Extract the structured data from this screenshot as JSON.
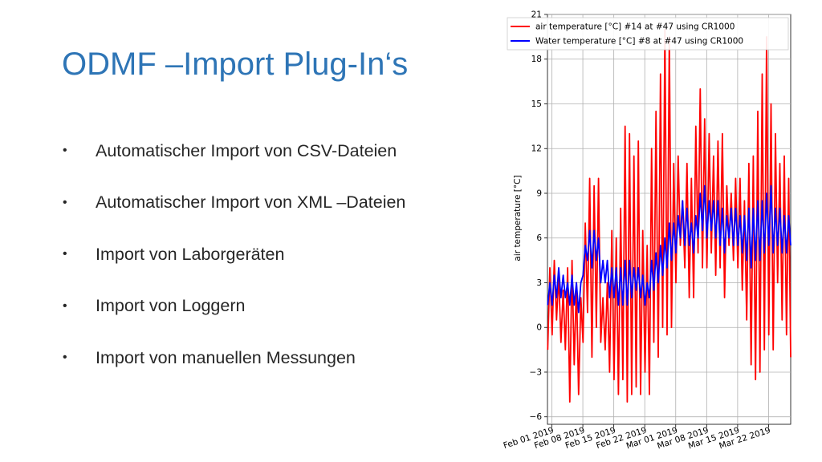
{
  "slide": {
    "title": "ODMF –Import Plug-In‘s",
    "bullet_symbol": "•",
    "bullets": [
      "Automatischer Import von CSV-Dateien",
      "Automatischer Import von XML –Dateien",
      "Import von Laborgeräten",
      "Import von Loggern",
      "Import von manuellen Messungen"
    ]
  },
  "chart_data": {
    "type": "line",
    "ylabel": "air temperature [°C]",
    "xlabel": "",
    "x_range": [
      "2019-01-31",
      "2019-03-27"
    ],
    "ylim": [
      -6.5,
      21
    ],
    "yticks": [
      -6,
      -3,
      0,
      3,
      6,
      9,
      12,
      15,
      18,
      21
    ],
    "ytick_labels": [
      "−6",
      "−3",
      "0",
      "3",
      "6",
      "9",
      "12",
      "15",
      "18",
      "21"
    ],
    "xticks": [
      "2019-02-01",
      "2019-02-08",
      "2019-02-15",
      "2019-02-22",
      "2019-03-01",
      "2019-03-08",
      "2019-03-15",
      "2019-03-22"
    ],
    "xtick_labels": [
      "Feb 01 2019",
      "Feb 08 2019",
      "Feb 15 2019",
      "Feb 22 2019",
      "Mar 01 2019",
      "Mar 08 2019",
      "Mar 15 2019",
      "Mar 22 2019"
    ],
    "grid": true,
    "legend_position": "top-left",
    "series": [
      {
        "name": "air temperature [°C] #14 at #47 using CR1000",
        "color": "#ff0000",
        "x": [
          "2019-01-31",
          "2019-02-01",
          "2019-02-02",
          "2019-02-03",
          "2019-02-04",
          "2019-02-05",
          "2019-02-06",
          "2019-02-07",
          "2019-02-08",
          "2019-02-09",
          "2019-02-10",
          "2019-02-11",
          "2019-02-12",
          "2019-02-13",
          "2019-02-14",
          "2019-02-15",
          "2019-02-16",
          "2019-02-17",
          "2019-02-18",
          "2019-02-19",
          "2019-02-20",
          "2019-02-21",
          "2019-02-22",
          "2019-02-23",
          "2019-02-24",
          "2019-02-25",
          "2019-02-26",
          "2019-02-27",
          "2019-02-28",
          "2019-03-01",
          "2019-03-02",
          "2019-03-03",
          "2019-03-04",
          "2019-03-05",
          "2019-03-06",
          "2019-03-07",
          "2019-03-08",
          "2019-03-09",
          "2019-03-10",
          "2019-03-11",
          "2019-03-12",
          "2019-03-13",
          "2019-03-14",
          "2019-03-15",
          "2019-03-16",
          "2019-03-17",
          "2019-03-18",
          "2019-03-19",
          "2019-03-20",
          "2019-03-21",
          "2019-03-22",
          "2019-03-23",
          "2019-03-24",
          "2019-03-25",
          "2019-03-26",
          "2019-03-27"
        ],
        "min": [
          -1.5,
          -0.5,
          0.5,
          -1.0,
          -1.5,
          -5.0,
          -2.5,
          -4.5,
          -1.0,
          1.0,
          -2.0,
          0.0,
          -1.0,
          -1.5,
          -3.0,
          -3.5,
          -4.5,
          -3.5,
          -5.0,
          -4.5,
          -4.0,
          -4.5,
          -3.0,
          -4.5,
          -1.0,
          -2.0,
          0.0,
          -0.5,
          0.0,
          3.0,
          5.5,
          4.0,
          2.0,
          2.0,
          5.0,
          4.0,
          4.0,
          5.0,
          3.5,
          4.0,
          2.0,
          5.5,
          4.5,
          4.0,
          2.5,
          0.5,
          -2.5,
          -3.5,
          -3.0,
          -1.5,
          -0.5,
          -1.5,
          3.0,
          0.5,
          -0.5,
          -2.0
        ],
        "max": [
          4.0,
          4.5,
          3.5,
          2.5,
          4.0,
          4.5,
          3.0,
          2.0,
          7.0,
          10.0,
          9.5,
          10.0,
          2.0,
          3.0,
          6.5,
          6.0,
          8.0,
          13.5,
          13.0,
          11.5,
          12.5,
          6.5,
          5.5,
          12.0,
          14.5,
          17.0,
          20.0,
          19.5,
          11.0,
          11.5,
          8.5,
          11.0,
          10.0,
          13.5,
          16.0,
          14.0,
          13.0,
          11.5,
          12.5,
          13.0,
          9.5,
          9.0,
          10.0,
          10.0,
          8.5,
          11.0,
          11.5,
          14.5,
          17.0,
          19.5,
          15.0,
          13.0,
          11.0,
          11.5,
          10.0,
          8.0
        ]
      },
      {
        "name": "Water temperature [°C] #8 at #47 using CR1000",
        "color": "#0000ff",
        "x": [
          "2019-01-31",
          "2019-02-01",
          "2019-02-02",
          "2019-02-03",
          "2019-02-04",
          "2019-02-05",
          "2019-02-06",
          "2019-02-07",
          "2019-02-08",
          "2019-02-09",
          "2019-02-10",
          "2019-02-11",
          "2019-02-12",
          "2019-02-13",
          "2019-02-14",
          "2019-02-15",
          "2019-02-16",
          "2019-02-17",
          "2019-02-18",
          "2019-02-19",
          "2019-02-20",
          "2019-02-21",
          "2019-02-22",
          "2019-02-23",
          "2019-02-24",
          "2019-02-25",
          "2019-02-26",
          "2019-02-27",
          "2019-02-28",
          "2019-03-01",
          "2019-03-02",
          "2019-03-03",
          "2019-03-04",
          "2019-03-05",
          "2019-03-06",
          "2019-03-07",
          "2019-03-08",
          "2019-03-09",
          "2019-03-10",
          "2019-03-11",
          "2019-03-12",
          "2019-03-13",
          "2019-03-14",
          "2019-03-15",
          "2019-03-16",
          "2019-03-17",
          "2019-03-18",
          "2019-03-19",
          "2019-03-20",
          "2019-03-21",
          "2019-03-22",
          "2019-03-23",
          "2019-03-24",
          "2019-03-25",
          "2019-03-26",
          "2019-03-27"
        ],
        "min": [
          1.5,
          1.5,
          2.0,
          2.0,
          2.0,
          1.5,
          1.5,
          1.0,
          3.5,
          4.5,
          4.0,
          4.5,
          3.0,
          3.0,
          2.0,
          2.0,
          1.5,
          1.5,
          1.5,
          2.0,
          2.5,
          2.0,
          1.5,
          2.0,
          2.5,
          3.0,
          3.5,
          4.0,
          4.5,
          5.0,
          6.0,
          5.5,
          5.5,
          5.0,
          6.0,
          6.5,
          6.0,
          6.5,
          6.0,
          5.5,
          5.0,
          6.0,
          5.5,
          5.5,
          5.0,
          4.5,
          4.0,
          4.5,
          4.5,
          5.0,
          5.5,
          5.0,
          5.5,
          5.0,
          5.0,
          5.5
        ],
        "max": [
          3.0,
          3.5,
          4.0,
          3.5,
          3.0,
          3.5,
          3.0,
          3.0,
          5.5,
          6.5,
          6.5,
          6.0,
          4.5,
          4.5,
          4.0,
          4.0,
          4.0,
          4.5,
          4.5,
          4.0,
          4.0,
          3.5,
          3.0,
          4.5,
          5.0,
          5.5,
          6.0,
          7.0,
          7.0,
          7.5,
          8.5,
          8.0,
          7.0,
          7.5,
          9.0,
          9.5,
          8.5,
          8.5,
          8.5,
          8.0,
          7.5,
          8.0,
          8.0,
          7.5,
          7.5,
          8.0,
          8.0,
          8.5,
          8.5,
          9.0,
          9.5,
          8.0,
          8.0,
          7.5,
          7.5,
          7.5
        ]
      }
    ]
  }
}
